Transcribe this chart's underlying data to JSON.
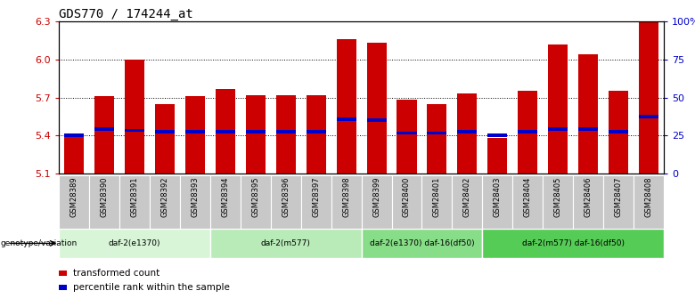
{
  "title": "GDS770 / 174244_at",
  "samples": [
    "GSM28389",
    "GSM28390",
    "GSM28391",
    "GSM28392",
    "GSM28393",
    "GSM28394",
    "GSM28395",
    "GSM28396",
    "GSM28397",
    "GSM28398",
    "GSM28399",
    "GSM28400",
    "GSM28401",
    "GSM28402",
    "GSM28403",
    "GSM28404",
    "GSM28405",
    "GSM28406",
    "GSM28407",
    "GSM28408"
  ],
  "bar_values": [
    5.4,
    5.71,
    6.0,
    5.65,
    5.71,
    5.77,
    5.72,
    5.72,
    5.72,
    6.16,
    6.13,
    5.68,
    5.65,
    5.73,
    5.38,
    5.75,
    6.12,
    6.04,
    5.75,
    6.3
  ],
  "percentile_values": [
    5.4,
    5.45,
    5.44,
    5.43,
    5.43,
    5.43,
    5.43,
    5.43,
    5.43,
    5.53,
    5.52,
    5.42,
    5.42,
    5.43,
    5.4,
    5.43,
    5.45,
    5.45,
    5.43,
    5.55
  ],
  "ymin": 5.1,
  "ymax": 6.3,
  "yticks": [
    5.1,
    5.4,
    5.7,
    6.0,
    6.3
  ],
  "ytick_labels": [
    "5.1",
    "5.4",
    "5.7",
    "6.0",
    "6.3"
  ],
  "bar_color": "#cc0000",
  "dot_color": "#0000cc",
  "groups": [
    {
      "label": "daf-2(e1370)",
      "start": 0,
      "end": 5,
      "color": "#d8f5d8"
    },
    {
      "label": "daf-2(m577)",
      "start": 5,
      "end": 10,
      "color": "#b8ebb8"
    },
    {
      "label": "daf-2(e1370) daf-16(df50)",
      "start": 10,
      "end": 14,
      "color": "#88dd88"
    },
    {
      "label": "daf-2(m577) daf-16(df50)",
      "start": 14,
      "end": 20,
      "color": "#55cc55"
    }
  ],
  "genotype_label": "genotype/variation",
  "legend_items": [
    {
      "label": "transformed count",
      "color": "#cc0000"
    },
    {
      "label": "percentile rank within the sample",
      "color": "#0000cc"
    }
  ],
  "title_fontsize": 10,
  "bar_width": 0.65
}
